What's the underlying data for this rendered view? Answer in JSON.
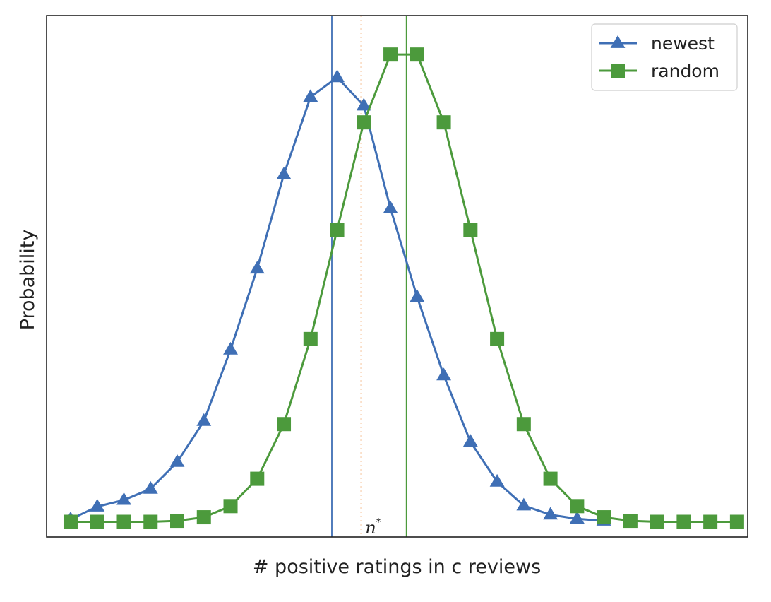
{
  "chart_data": {
    "type": "line",
    "title": "",
    "xlabel": "# positive ratings in c reviews",
    "ylabel": "Probability",
    "x": [
      0,
      1,
      2,
      3,
      4,
      5,
      6,
      7,
      8,
      9,
      10,
      11,
      12,
      13,
      14,
      15,
      16,
      17,
      18,
      19,
      20,
      21,
      22,
      23,
      24,
      25
    ],
    "xlim": [
      -0.9,
      25.4
    ],
    "ylim": [
      -0.003,
      0.1
    ],
    "grid": false,
    "ticks_shown": false,
    "legend": {
      "placement": "top-right"
    },
    "series": [
      {
        "name": "newest",
        "marker": "triangle",
        "color": "#3f6fb5",
        "values": [
          0.0005,
          0.003,
          0.0043,
          0.0065,
          0.0118,
          0.0199,
          0.034,
          0.05,
          0.0686,
          0.0839,
          0.0878,
          0.0822,
          0.0619,
          0.0444,
          0.0289,
          0.0158,
          0.0079,
          0.0032,
          0.0014,
          0.0006,
          0.0002,
          null,
          null,
          null,
          null,
          null
        ]
      },
      {
        "name": "random",
        "marker": "square",
        "color": "#4c9a3c",
        "values": [
          0.0,
          0.0,
          0.0,
          0.0,
          0.0002,
          0.0009,
          0.0031,
          0.0085,
          0.0193,
          0.0361,
          0.0577,
          0.0789,
          0.0923,
          0.0923,
          0.0789,
          0.0577,
          0.0361,
          0.0193,
          0.0085,
          0.0031,
          0.0009,
          0.0002,
          0.0,
          0.0,
          0.0,
          0.0
        ]
      }
    ],
    "vlines": [
      {
        "x": 9.8,
        "color": "#3f6fb5",
        "style": "solid"
      },
      {
        "x": 10.9,
        "color": "#f0a060",
        "style": "dotted"
      },
      {
        "x": 12.6,
        "color": "#4c9a3c",
        "style": "solid"
      }
    ],
    "annotations": [
      {
        "text": "n",
        "superscript": "*",
        "x": 11.05,
        "y": 0.0005
      }
    ]
  }
}
